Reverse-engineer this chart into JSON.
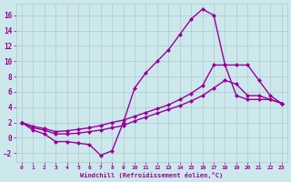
{
  "bg_color": "#cce8ec",
  "line_color": "#990099",
  "grid_color": "#b0c8cc",
  "xlabel": "Windchill (Refroidissement éolien,°C)",
  "xlabel_color": "#990099",
  "tick_color": "#990099",
  "xlim": [
    -0.5,
    23.5
  ],
  "ylim": [
    -3.2,
    17.5
  ],
  "yticks": [
    -2,
    0,
    2,
    4,
    6,
    8,
    10,
    12,
    14,
    16
  ],
  "xticks": [
    0,
    1,
    2,
    3,
    4,
    5,
    6,
    7,
    8,
    9,
    10,
    11,
    12,
    13,
    14,
    15,
    16,
    17,
    18,
    19,
    20,
    21,
    22,
    23
  ],
  "curve1_x": [
    0,
    1,
    2,
    3,
    4,
    5,
    6,
    7,
    8,
    9,
    10,
    11,
    12,
    13,
    14,
    15,
    16,
    17,
    18,
    19,
    20,
    21,
    22,
    23
  ],
  "curve1_y": [
    2.0,
    1.0,
    0.5,
    -0.5,
    -0.5,
    -0.7,
    -0.9,
    -2.3,
    -1.7,
    2.0,
    6.5,
    8.5,
    10.0,
    11.5,
    13.5,
    15.5,
    16.8,
    16.0,
    9.5,
    5.5,
    5.0,
    5.0,
    5.0,
    4.5
  ],
  "curve2_x": [
    0,
    1,
    2,
    3,
    4,
    5,
    6,
    7,
    8,
    9,
    10,
    11,
    12,
    13,
    14,
    15,
    16,
    17,
    18,
    19,
    20,
    21,
    22,
    23
  ],
  "curve2_y": [
    2.0,
    1.3,
    1.0,
    0.5,
    0.5,
    0.6,
    0.8,
    1.0,
    1.3,
    1.6,
    2.2,
    2.7,
    3.2,
    3.7,
    4.2,
    4.8,
    5.5,
    6.5,
    7.5,
    7.0,
    5.5,
    5.5,
    5.0,
    4.5
  ],
  "curve3_x": [
    0,
    1,
    2,
    3,
    4,
    5,
    6,
    7,
    8,
    9,
    10,
    11,
    12,
    13,
    14,
    15,
    16,
    17,
    18,
    19,
    20,
    21,
    22,
    23
  ],
  "curve3_y": [
    2.0,
    1.5,
    1.2,
    0.8,
    0.9,
    1.1,
    1.3,
    1.6,
    2.0,
    2.3,
    2.8,
    3.3,
    3.8,
    4.3,
    5.0,
    5.8,
    6.8,
    9.5,
    9.5,
    9.5,
    9.5,
    7.5,
    5.5,
    4.5
  ],
  "marker": "D",
  "markersize": 2.5,
  "linewidth": 1.0
}
